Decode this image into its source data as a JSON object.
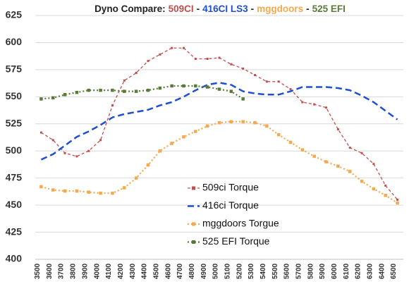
{
  "chart_data": {
    "type": "line",
    "title": [
      "Dyno Compare:",
      "509CI",
      "-",
      "416CI LS3",
      "-",
      "mggdoors",
      "-",
      "525 EFI"
    ],
    "title_colors": [
      "#222222",
      "#c0504d",
      "#222222",
      "#1f4fd1",
      "#222222",
      "#f5a94f",
      "#222222",
      "#5a7a3a"
    ],
    "categories": [
      "3500",
      "3600",
      "3700",
      "3800",
      "3900",
      "4000",
      "4100",
      "4200",
      "4300",
      "4400",
      "4500",
      "4600",
      "4700",
      "4800",
      "4900",
      "5000",
      "5100",
      "5200",
      "5300",
      "5400",
      "5500",
      "5600",
      "5700",
      "5800",
      "5900",
      "6000",
      "6100",
      "6200",
      "6300",
      "6400",
      "6500"
    ],
    "series": [
      {
        "name": "509ci Torque",
        "color": "#c0504d",
        "values": [
          517,
          510,
          498,
          495,
          500,
          510,
          542,
          565,
          572,
          583,
          589,
          595,
          595,
          585,
          585,
          586,
          580,
          576,
          570,
          564,
          564,
          557,
          545,
          543,
          540,
          520,
          503,
          498,
          488,
          468,
          455
        ]
      },
      {
        "name": "416ci Torque",
        "color": "#1f4fd1",
        "values": [
          492,
          497,
          505,
          513,
          518,
          524,
          531,
          534,
          536,
          538,
          542,
          545,
          550,
          556,
          561,
          563,
          561,
          555,
          553,
          552,
          552,
          555,
          559,
          559,
          559,
          558,
          556,
          551,
          545,
          537,
          529
        ]
      },
      {
        "name": "mggdoors Torgue",
        "color": "#f5a94f",
        "values": [
          467,
          464,
          463,
          463,
          462,
          461,
          461,
          466,
          475,
          487,
          500,
          507,
          513,
          518,
          523,
          526,
          527,
          527,
          526,
          523,
          515,
          508,
          501,
          495,
          490,
          486,
          481,
          472,
          465,
          459,
          452
        ]
      },
      {
        "name": "525 EFI Torque",
        "color": "#5a7a3a",
        "values": [
          548,
          549,
          552,
          554,
          556,
          556,
          556,
          555,
          555,
          556,
          558,
          560,
          560,
          560,
          559,
          557,
          555,
          548,
          null,
          null,
          null,
          null,
          null,
          null,
          null,
          null,
          null,
          null,
          null,
          null,
          null
        ]
      }
    ],
    "ylim": [
      400,
      625
    ],
    "yticks": [
      400,
      425,
      450,
      475,
      500,
      525,
      550,
      575,
      600,
      625
    ],
    "grid": true
  }
}
